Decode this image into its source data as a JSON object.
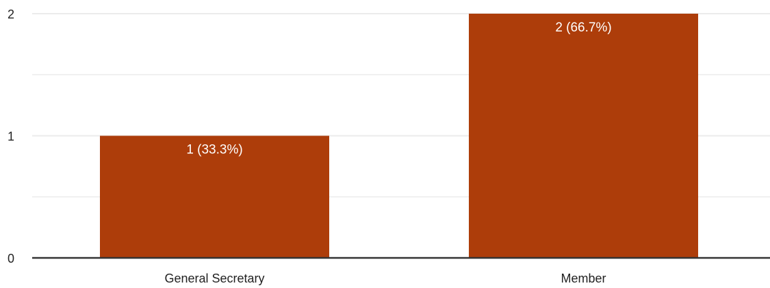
{
  "chart_data": {
    "type": "bar",
    "categories": [
      "General Secretary",
      "Member"
    ],
    "values": [
      1,
      2
    ],
    "data_labels": [
      "1 (33.3%)",
      "2 (66.7%)"
    ],
    "title": "",
    "xlabel": "",
    "ylabel": "",
    "ylim": [
      0,
      2
    ],
    "yticks": [
      0,
      1,
      2
    ],
    "grid": true,
    "bar_color": "#ad3d0a",
    "grid_color": "#ebebeb",
    "axis_color": "#333333"
  }
}
